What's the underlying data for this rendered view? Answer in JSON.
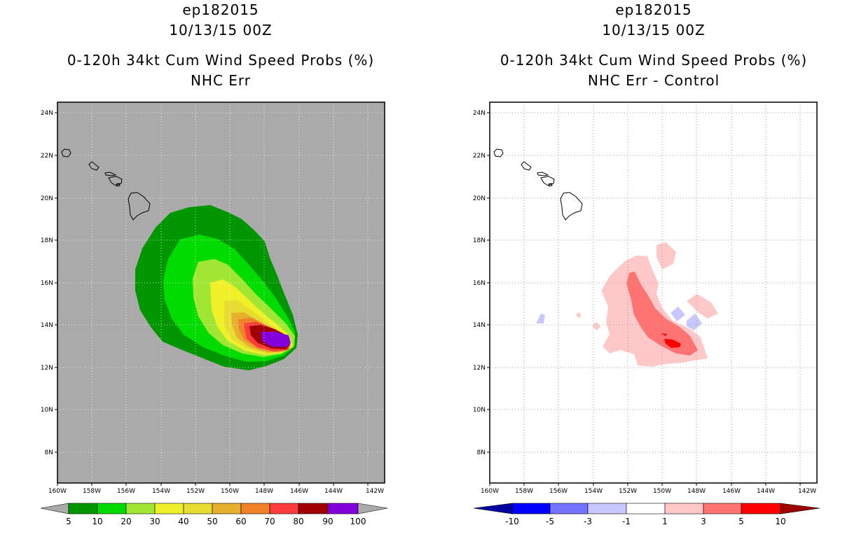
{
  "left_panel": {
    "storm_id": "ep182015",
    "datetime": "10/13/15 00Z",
    "product": "0-120h 34kt Cum Wind Speed Probs (%)",
    "subtitle": "NHC Err",
    "background_color": "#aaaaaa",
    "colorbar": {
      "labels": [
        "5",
        "10",
        "20",
        "30",
        "40",
        "50",
        "60",
        "70",
        "80",
        "90",
        "100"
      ],
      "colors": [
        "#009600",
        "#00dc00",
        "#a0e632",
        "#f0f028",
        "#e6dc32",
        "#e6af2d",
        "#f08228",
        "#fa3c3c",
        "#a00000",
        "#8200dc"
      ]
    }
  },
  "right_panel": {
    "storm_id": "ep182015",
    "datetime": "10/13/15 00Z",
    "product": "0-120h 34kt Cum Wind Speed Probs (%)",
    "subtitle": "NHC Err - Control",
    "background_color": "#ffffff",
    "colorbar": {
      "labels": [
        "-10",
        "-5",
        "-3",
        "-1",
        "1",
        "3",
        "5",
        "10"
      ],
      "colors": [
        "#0000a0",
        "#0000ff",
        "#7373ff",
        "#c8c8ff",
        "#ffffff",
        "#ffc8c8",
        "#ff7373",
        "#ff0000",
        "#a00000"
      ]
    }
  },
  "axes": {
    "lat_labels": [
      "24N",
      "22N",
      "20N",
      "18N",
      "16N",
      "14N",
      "12N",
      "10N",
      "8N"
    ],
    "lon_labels": [
      "160W",
      "158W",
      "156W",
      "154W",
      "152W",
      "150W",
      "148W",
      "146W",
      "144W",
      "142W"
    ]
  }
}
